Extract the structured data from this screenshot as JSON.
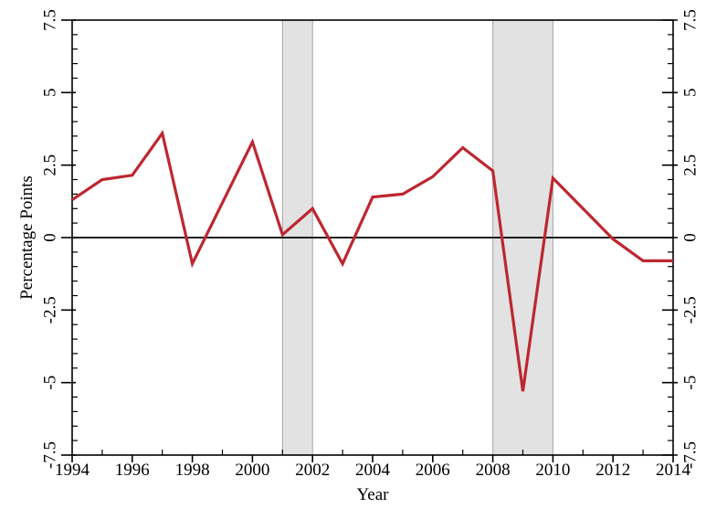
{
  "figure": {
    "xlabel": "Year",
    "ylabel": "Percentage Points"
  },
  "chart_data": {
    "type": "line",
    "title": "",
    "xlabel": "Year",
    "ylabel": "Percentage Points",
    "x": [
      1994,
      1995,
      1996,
      1997,
      1998,
      1999,
      2000,
      2001,
      2002,
      2003,
      2004,
      2005,
      2006,
      2007,
      2008,
      2009,
      2010,
      2011,
      2012,
      2013,
      2014
    ],
    "series": [
      {
        "name": "Percentage Points",
        "values": [
          1.3,
          2.0,
          2.15,
          3.6,
          -0.9,
          1.2,
          3.3,
          0.1,
          1.0,
          -0.9,
          1.4,
          1.5,
          2.1,
          3.1,
          2.3,
          -5.3,
          2.05,
          1.0,
          -0.05,
          -0.8,
          -0.8
        ]
      }
    ],
    "xlim": [
      1994,
      2014
    ],
    "ylim": [
      -7.5,
      7.5
    ],
    "x_major_ticks": [
      1994,
      1996,
      1998,
      2000,
      2002,
      2004,
      2006,
      2008,
      2010,
      2012,
      2014
    ],
    "x_major_tick_labels": [
      "1994",
      "1996",
      "1998",
      "2000",
      "2002",
      "2004",
      "2006",
      "2008",
      "2010",
      "2012",
      "2014"
    ],
    "x_minor_ticks": [
      1995,
      1997,
      1999,
      2001,
      2003,
      2005,
      2007,
      2009,
      2011,
      2013
    ],
    "y_major_ticks": [
      -7.5,
      -5,
      -2.5,
      0,
      2.5,
      5,
      7.5
    ],
    "y_major_tick_labels": [
      "-7.5",
      "-5",
      "-2.5",
      "0",
      "2.5",
      "5",
      "7.5"
    ],
    "y_minor_step": 0.5,
    "grid": false,
    "legend": "none",
    "zero_line": true,
    "shaded_regions": [
      {
        "from": 2001,
        "to": 2002
      },
      {
        "from": 2008,
        "to": 2010
      }
    ],
    "colors": {
      "line": "#bd2730",
      "band_fill": "#e2e2e2",
      "band_edge": "#a6a6a6",
      "axis": "#000000"
    }
  }
}
